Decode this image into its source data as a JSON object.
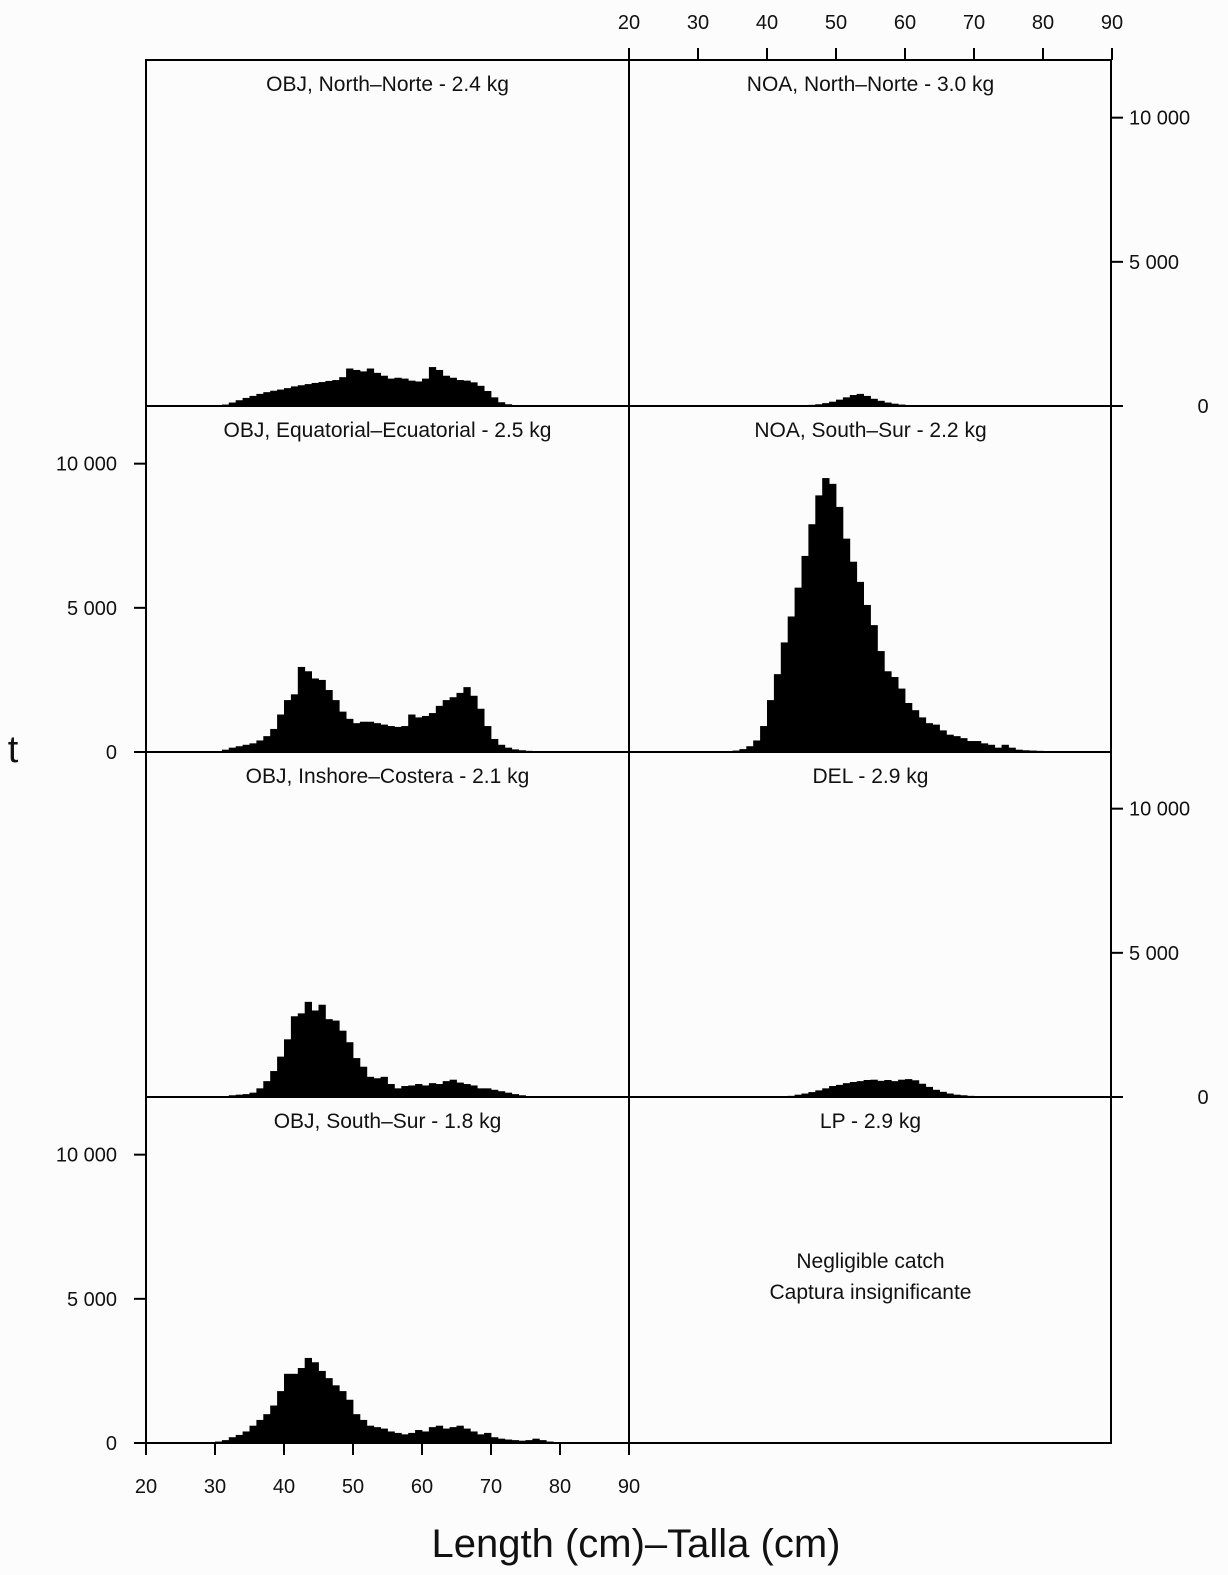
{
  "chart_data": {
    "type": "bar",
    "xlabel": "Length (cm)–Talla (cm)",
    "ylabel": "t",
    "xlim": [
      20,
      90
    ],
    "ylim": [
      0,
      12000
    ],
    "x_ticks": [
      "20",
      "30",
      "40",
      "50",
      "60",
      "70",
      "80",
      "90"
    ],
    "y_ticks": [
      "0",
      "5 000",
      "10 000"
    ],
    "bin_width_cm": 1,
    "panels": [
      {
        "id": "obj-north",
        "title": "OBJ, North–Norte - 2.4 kg",
        "x": [
          31,
          32,
          33,
          34,
          35,
          36,
          37,
          38,
          39,
          40,
          41,
          42,
          43,
          44,
          45,
          46,
          47,
          48,
          49,
          50,
          51,
          52,
          53,
          54,
          55,
          56,
          57,
          58,
          59,
          60,
          61,
          62,
          63,
          64,
          65,
          66,
          67,
          68,
          69,
          70,
          71,
          72,
          73
        ],
        "values": [
          50,
          120,
          200,
          280,
          350,
          420,
          480,
          530,
          570,
          620,
          680,
          720,
          760,
          800,
          830,
          870,
          900,
          1000,
          1300,
          1250,
          1200,
          1300,
          1150,
          1050,
          950,
          980,
          950,
          880,
          850,
          950,
          1350,
          1250,
          1050,
          980,
          900,
          880,
          820,
          700,
          520,
          300,
          130,
          60,
          30
        ]
      },
      {
        "id": "noa-north",
        "title": "NOA, North–Norte - 3.0 kg",
        "x": [
          45,
          46,
          47,
          48,
          49,
          50,
          51,
          52,
          53,
          54,
          55,
          56,
          57,
          58,
          59,
          60,
          61,
          62
        ],
        "values": [
          20,
          40,
          60,
          100,
          150,
          220,
          300,
          380,
          420,
          350,
          250,
          180,
          120,
          80,
          50,
          30,
          15,
          10
        ]
      },
      {
        "id": "obj-equatorial",
        "title": "OBJ, Equatorial–Ecuatorial - 2.5 kg",
        "x": [
          31,
          32,
          33,
          34,
          35,
          36,
          37,
          38,
          39,
          40,
          41,
          42,
          43,
          44,
          45,
          46,
          47,
          48,
          49,
          50,
          51,
          52,
          53,
          54,
          55,
          56,
          57,
          58,
          59,
          60,
          61,
          62,
          63,
          64,
          65,
          66,
          67,
          68,
          69,
          70,
          71,
          72,
          73,
          74,
          75,
          76,
          77
        ],
        "values": [
          80,
          150,
          200,
          250,
          300,
          400,
          550,
          800,
          1300,
          1800,
          2000,
          2950,
          2800,
          2550,
          2500,
          2150,
          1800,
          1400,
          1150,
          1000,
          1050,
          1050,
          1000,
          950,
          900,
          870,
          900,
          1300,
          1200,
          1250,
          1350,
          1600,
          1800,
          1900,
          2050,
          2250,
          1950,
          1500,
          900,
          450,
          250,
          150,
          90,
          60,
          40,
          30,
          20
        ]
      },
      {
        "id": "noa-south",
        "title": "NOA, South–Sur - 2.2 kg",
        "x": [
          35,
          36,
          37,
          38,
          39,
          40,
          41,
          42,
          43,
          44,
          45,
          46,
          47,
          48,
          49,
          50,
          51,
          52,
          53,
          54,
          55,
          56,
          57,
          58,
          59,
          60,
          61,
          62,
          63,
          64,
          65,
          66,
          67,
          68,
          69,
          70,
          71,
          72,
          73,
          74,
          75,
          76,
          77,
          78,
          79,
          80,
          81,
          82,
          83,
          84,
          85,
          86,
          87,
          88
        ],
        "values": [
          50,
          100,
          200,
          400,
          900,
          1800,
          2700,
          3800,
          4700,
          5700,
          6800,
          7900,
          8900,
          9500,
          9300,
          8500,
          7400,
          6600,
          5900,
          5100,
          4400,
          3500,
          2800,
          2600,
          2200,
          1700,
          1450,
          1200,
          1000,
          950,
          750,
          600,
          550,
          480,
          380,
          380,
          300,
          250,
          150,
          250,
          150,
          80,
          60,
          50,
          40,
          30,
          20,
          20,
          20,
          15,
          15,
          15,
          10,
          10
        ]
      },
      {
        "id": "obj-inshore",
        "title": "OBJ, Inshore–Costera - 2.1 kg",
        "x": [
          32,
          33,
          34,
          35,
          36,
          37,
          38,
          39,
          40,
          41,
          42,
          43,
          44,
          45,
          46,
          47,
          48,
          49,
          50,
          51,
          52,
          53,
          54,
          55,
          56,
          57,
          58,
          59,
          60,
          61,
          62,
          63,
          64,
          65,
          66,
          67,
          68,
          69,
          70,
          71,
          72,
          73,
          74,
          75
        ],
        "values": [
          60,
          80,
          100,
          150,
          300,
          550,
          900,
          1400,
          2000,
          2800,
          2900,
          3300,
          3000,
          3200,
          2700,
          2650,
          2300,
          1900,
          1350,
          1050,
          700,
          650,
          700,
          450,
          300,
          380,
          400,
          450,
          400,
          480,
          450,
          550,
          600,
          500,
          450,
          400,
          300,
          300,
          250,
          200,
          150,
          100,
          60,
          30
        ]
      },
      {
        "id": "del",
        "title": "DEL - 2.9 kg",
        "x": [
          41,
          42,
          43,
          44,
          45,
          46,
          47,
          48,
          49,
          50,
          51,
          52,
          53,
          54,
          55,
          56,
          57,
          58,
          59,
          60,
          61,
          62,
          63,
          64,
          65,
          66,
          67,
          68,
          69,
          70,
          71,
          72,
          73,
          74,
          75,
          76
        ],
        "values": [
          10,
          20,
          40,
          80,
          120,
          170,
          230,
          300,
          380,
          420,
          480,
          520,
          550,
          590,
          600,
          560,
          590,
          550,
          600,
          620,
          580,
          460,
          350,
          250,
          180,
          120,
          80,
          60,
          40,
          30,
          20,
          15,
          10,
          10,
          5,
          5
        ]
      },
      {
        "id": "obj-south",
        "title": "OBJ, South–Sur - 1.8 kg",
        "x": [
          30,
          31,
          32,
          33,
          34,
          35,
          36,
          37,
          38,
          39,
          40,
          41,
          42,
          43,
          44,
          45,
          46,
          47,
          48,
          49,
          50,
          51,
          52,
          53,
          54,
          55,
          56,
          57,
          58,
          59,
          60,
          61,
          62,
          63,
          64,
          65,
          66,
          67,
          68,
          69,
          70,
          71,
          72,
          73,
          74,
          75,
          76,
          77,
          78
        ],
        "values": [
          50,
          100,
          200,
          280,
          400,
          600,
          800,
          1000,
          1300,
          1800,
          2400,
          2400,
          2600,
          2950,
          2800,
          2500,
          2250,
          2000,
          1800,
          1500,
          1000,
          800,
          600,
          550,
          500,
          400,
          350,
          300,
          350,
          450,
          400,
          550,
          600,
          500,
          550,
          600,
          500,
          400,
          300,
          350,
          200,
          150,
          120,
          100,
          80,
          100,
          150,
          100,
          50
        ]
      },
      {
        "id": "lp",
        "title": "LP - 2.9 kg",
        "x": [],
        "values": [],
        "note": [
          "Negligible catch",
          "Captura insignificante"
        ]
      }
    ]
  }
}
